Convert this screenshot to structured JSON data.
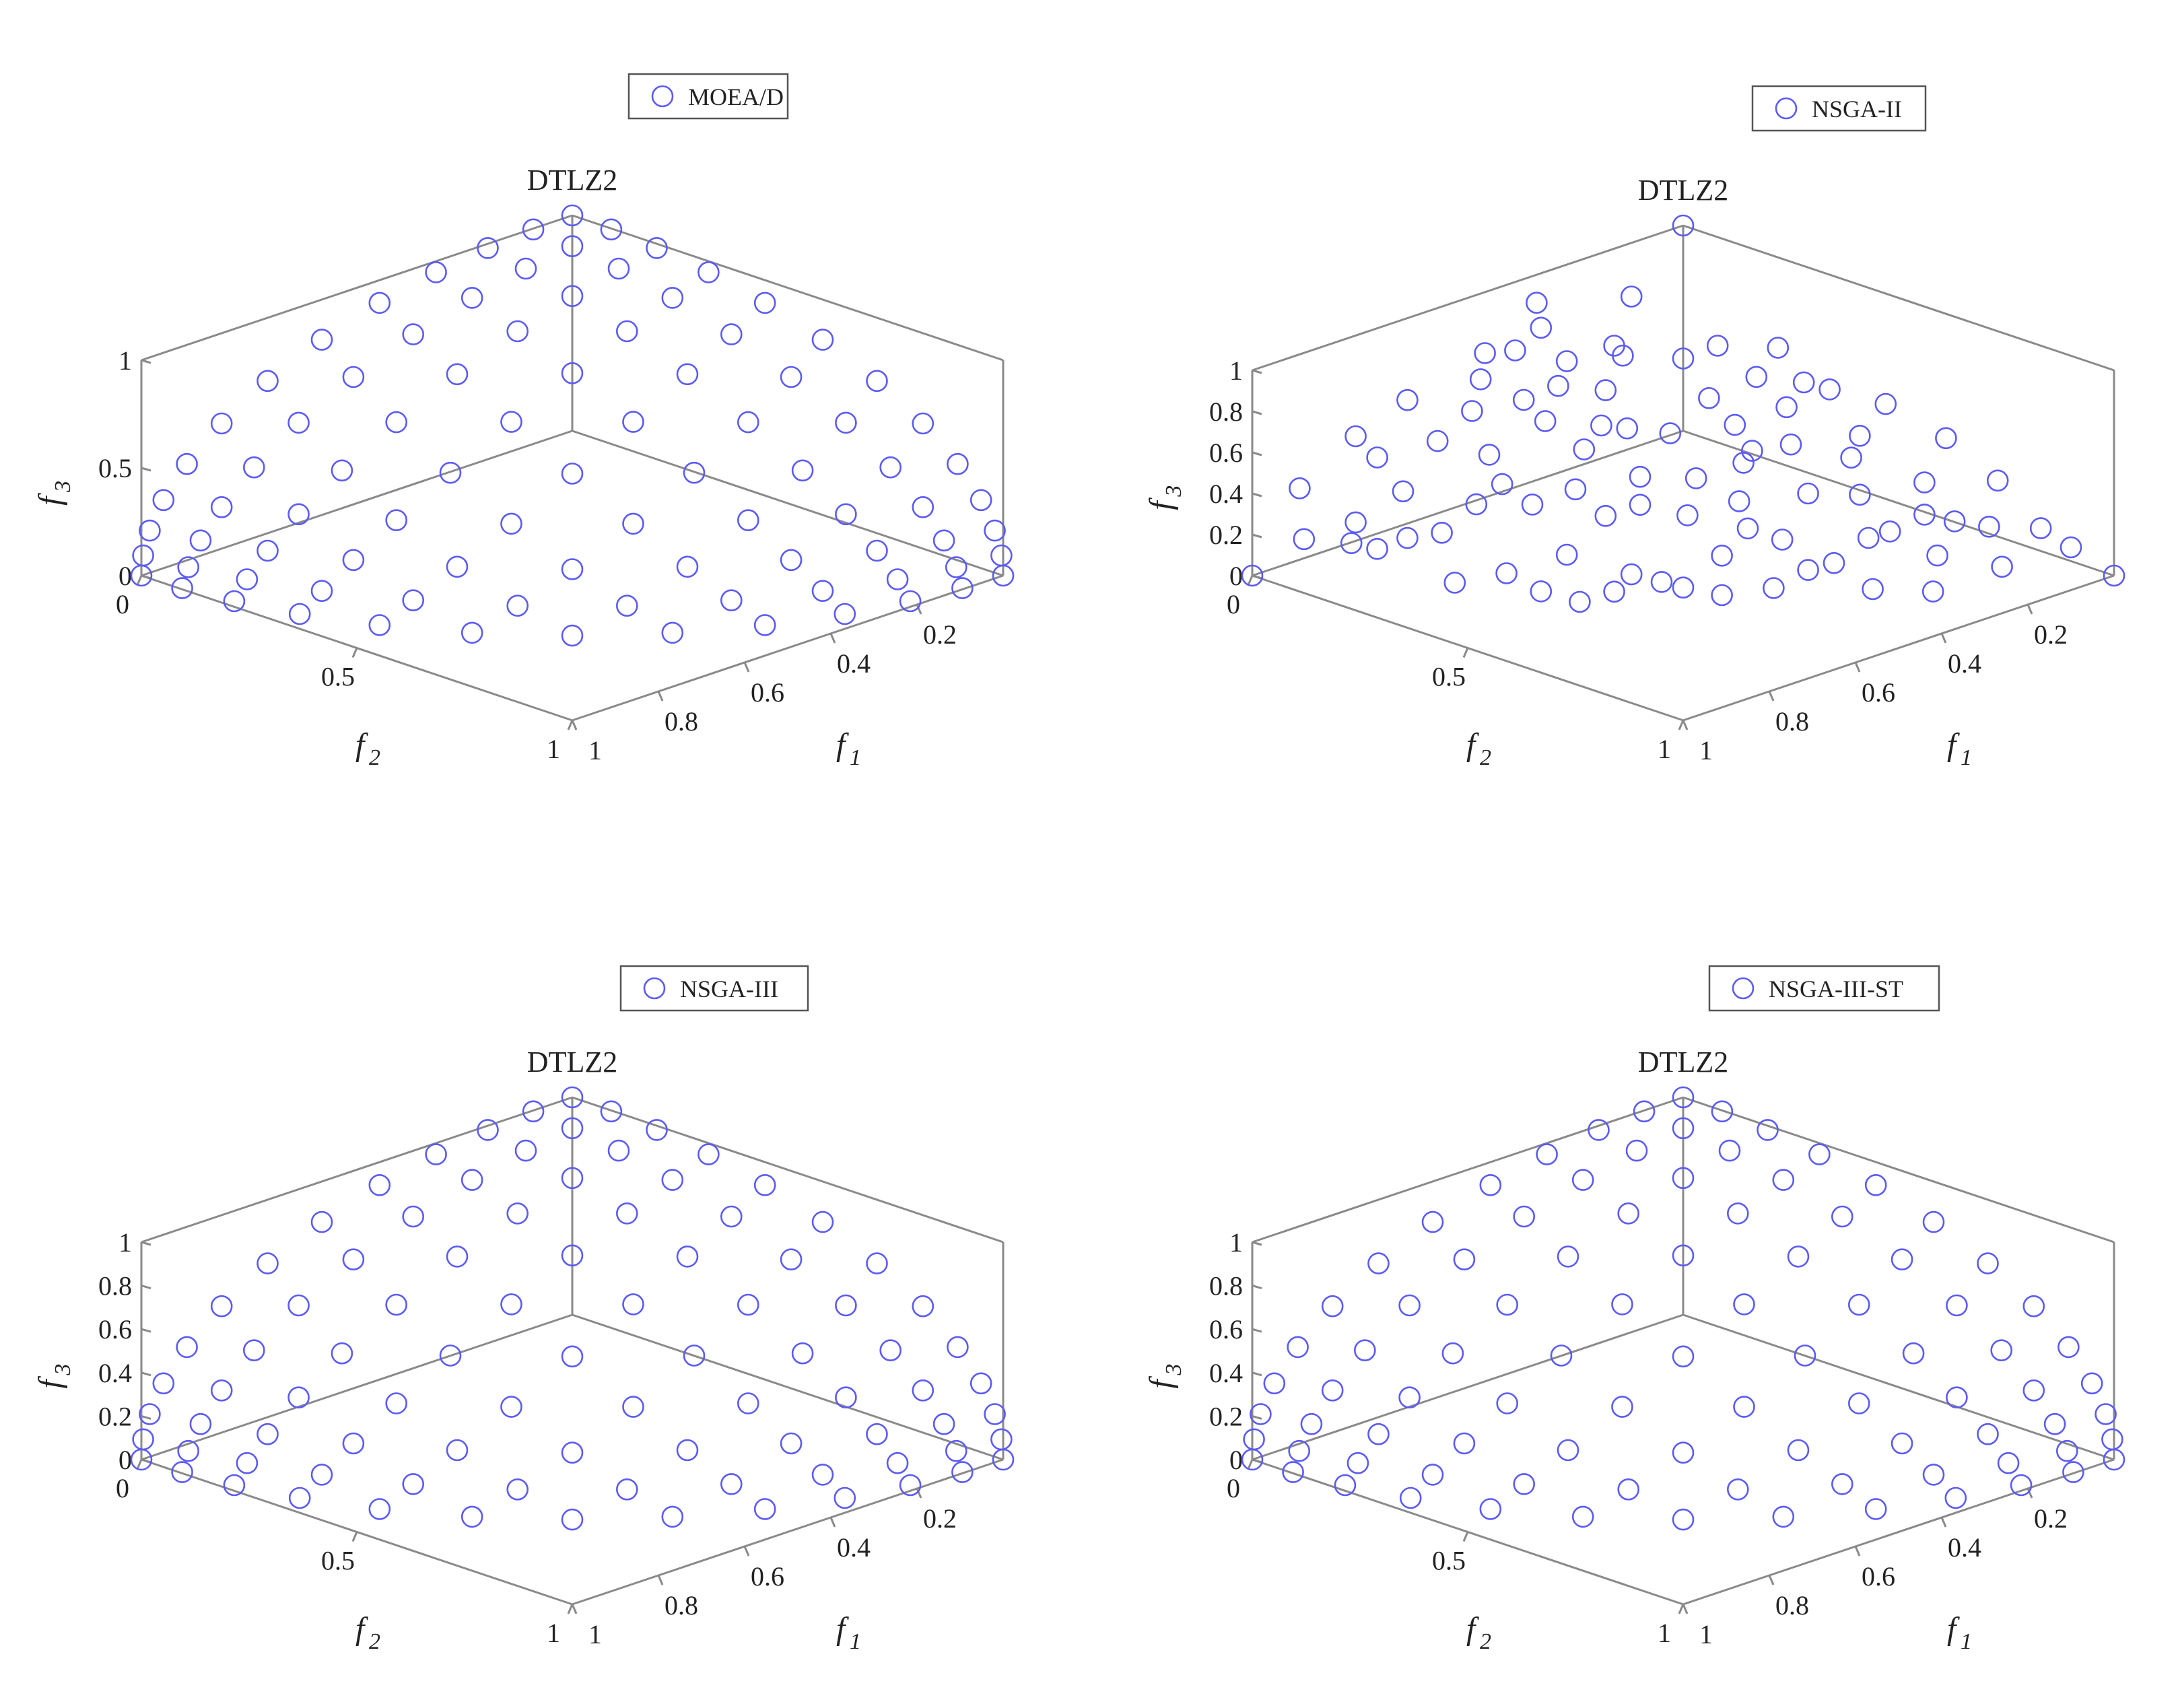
{
  "figure": {
    "marker_color": "#5b5bf5",
    "axis_color": "#8a8a8a",
    "background": "#ffffff"
  },
  "chart_data": [
    {
      "type": "scatter",
      "projection": "3d",
      "title": "DTLZ2",
      "legend": "MOEA/D",
      "legend_position": "top-right",
      "xlabel": "f1",
      "ylabel": "f2",
      "zlabel": "f3",
      "xlim": [
        0,
        1
      ],
      "ylim": [
        0,
        1
      ],
      "zlim": [
        0,
        1
      ],
      "x_ticks": [
        "0.2",
        "0.4",
        "0.6",
        "0.8",
        "1"
      ],
      "y_ticks": [
        "0",
        "0.5",
        "1"
      ],
      "z_ticks": [
        "0",
        "0.5",
        "1"
      ],
      "grid": false,
      "marker": "open-circle",
      "point_set": "reference",
      "points_note": "Uniformly distributed solutions on the spherical DTLZ2 front f1^2+f2^2+f3^2=1"
    },
    {
      "type": "scatter",
      "projection": "3d",
      "title": "DTLZ2",
      "legend": "NSGA-II",
      "legend_position": "top-right",
      "xlabel": "f1",
      "ylabel": "f2",
      "zlabel": "f3",
      "xlim": [
        0,
        1
      ],
      "ylim": [
        0,
        1
      ],
      "zlim": [
        0,
        1
      ],
      "x_ticks": [
        "0.2",
        "0.4",
        "0.6",
        "0.8",
        "1"
      ],
      "y_ticks": [
        "0",
        "0.5",
        "1"
      ],
      "z_ticks": [
        "0",
        "0.2",
        "0.4",
        "0.6",
        "0.8",
        "1"
      ],
      "grid": false,
      "marker": "open-circle",
      "point_set": "scattered",
      "points": [
        [
          0.25,
          0.41,
          0.88
        ],
        [
          0.78,
          0.37,
          0.5
        ],
        [
          0.19,
          0.68,
          0.71
        ],
        [
          0.53,
          0.71,
          0.46
        ],
        [
          0.34,
          0.82,
          0.46
        ],
        [
          0.62,
          0.48,
          0.62
        ],
        [
          0.09,
          0.55,
          0.83
        ],
        [
          0.44,
          0.22,
          0.87
        ],
        [
          0.71,
          0.62,
          0.33
        ],
        [
          0.86,
          0.3,
          0.41
        ],
        [
          0.15,
          0.27,
          0.95
        ],
        [
          0.57,
          0.81,
          0.14
        ],
        [
          0.39,
          0.58,
          0.71
        ],
        [
          0.92,
          0.21,
          0.33
        ],
        [
          0.48,
          0.31,
          0.82
        ],
        [
          0.27,
          0.91,
          0.31
        ],
        [
          0.66,
          0.71,
          0.23
        ],
        [
          0.04,
          0.38,
          0.92
        ],
        [
          0.81,
          0.52,
          0.26
        ],
        [
          0.58,
          0.24,
          0.78
        ],
        [
          0.31,
          0.63,
          0.71
        ],
        [
          0.73,
          0.44,
          0.52
        ],
        [
          0.12,
          0.83,
          0.54
        ],
        [
          0.45,
          0.86,
          0.23
        ],
        [
          0.95,
          0.12,
          0.28
        ],
        [
          0.22,
          0.49,
          0.84
        ],
        [
          0.63,
          0.62,
          0.47
        ],
        [
          0.84,
          0.41,
          0.36
        ],
        [
          0.36,
          0.36,
          0.86
        ],
        [
          0.52,
          0.62,
          0.58
        ],
        [
          0.07,
          0.71,
          0.7
        ],
        [
          0.69,
          0.28,
          0.66
        ],
        [
          0.42,
          0.77,
          0.48
        ],
        [
          0.88,
          0.44,
          0.16
        ],
        [
          0.18,
          0.95,
          0.25
        ],
        [
          0.55,
          0.43,
          0.72
        ],
        [
          0.77,
          0.16,
          0.62
        ],
        [
          0.29,
          0.74,
          0.61
        ],
        [
          0.61,
          0.77,
          0.19
        ],
        [
          0.03,
          0.92,
          0.39
        ],
        [
          0.49,
          0.52,
          0.7
        ],
        [
          0.91,
          0.32,
          0.26
        ],
        [
          0.24,
          0.61,
          0.75
        ],
        [
          0.67,
          0.54,
          0.51
        ],
        [
          0.38,
          0.91,
          0.17
        ],
        [
          0.82,
          0.26,
          0.51
        ],
        [
          0.11,
          0.44,
          0.89
        ],
        [
          0.57,
          0.33,
          0.75
        ],
        [
          0.74,
          0.65,
          0.18
        ],
        [
          0.33,
          0.51,
          0.79
        ],
        [
          0.46,
          0.71,
          0.54
        ],
        [
          0.96,
          0.22,
          0.17
        ],
        [
          0.21,
          0.86,
          0.46
        ],
        [
          0.64,
          0.39,
          0.66
        ],
        [
          0.79,
          0.58,
          0.2
        ],
        [
          0.14,
          0.61,
          0.78
        ],
        [
          0.51,
          0.84,
          0.17
        ],
        [
          0.87,
          0.14,
          0.47
        ],
        [
          0.28,
          0.42,
          0.86
        ],
        [
          0.69,
          0.69,
          0.21
        ],
        [
          0.41,
          0.64,
          0.65
        ],
        [
          0.05,
          0.81,
          0.58
        ],
        [
          0.59,
          0.56,
          0.58
        ],
        [
          0.93,
          0.35,
          0.12
        ],
        [
          0.35,
          0.77,
          0.53
        ],
        [
          0.72,
          0.33,
          0.61
        ],
        [
          0.17,
          0.93,
          0.33
        ],
        [
          0.54,
          0.26,
          0.8
        ],
        [
          0.83,
          0.48,
          0.28
        ],
        [
          0.26,
          0.55,
          0.79
        ],
        [
          0.62,
          0.74,
          0.26
        ],
        [
          0.09,
          0.97,
          0.22
        ],
        [
          0.47,
          0.41,
          0.78
        ],
        [
          0.76,
          0.53,
          0.38
        ],
        [
          0.32,
          0.88,
          0.35
        ],
        [
          0.89,
          0.26,
          0.37
        ],
        [
          0.43,
          0.56,
          0.71
        ],
        [
          0.66,
          0.19,
          0.73
        ],
        [
          0.19,
          0.76,
          0.62
        ],
        [
          0.56,
          0.66,
          0.5
        ],
        [
          0.98,
          0.08,
          0.18
        ],
        [
          0.37,
          0.29,
          0.88
        ],
        [
          0.71,
          0.56,
          0.42
        ],
        [
          0.13,
          0.52,
          0.85
        ],
        [
          0.52,
          0.79,
          0.32
        ],
        [
          0.85,
          0.37,
          0.37
        ],
        [
          0.23,
          0.94,
          0.25
        ],
        [
          0.61,
          0.45,
          0.65
        ],
        [
          0.0,
          0.0,
          1.0
        ],
        [
          1.0,
          0.0,
          0.0
        ],
        [
          0.0,
          1.0,
          0.0
        ]
      ]
    },
    {
      "type": "scatter",
      "projection": "3d",
      "title": "DTLZ2",
      "legend": "NSGA-III",
      "legend_position": "top-right",
      "xlabel": "f1",
      "ylabel": "f2",
      "zlabel": "f3",
      "xlim": [
        0,
        1
      ],
      "ylim": [
        0,
        1
      ],
      "zlim": [
        0,
        1
      ],
      "x_ticks": [
        "0.2",
        "0.4",
        "0.6",
        "0.8",
        "1"
      ],
      "y_ticks": [
        "0",
        "0.5",
        "1"
      ],
      "z_ticks": [
        "0",
        "0.2",
        "0.4",
        "0.6",
        "0.8",
        "1"
      ],
      "grid": false,
      "marker": "open-circle",
      "point_set": "reference",
      "points_note": "Uniformly distributed solutions on the spherical DTLZ2 front f1^2+f2^2+f3^2=1"
    },
    {
      "type": "scatter",
      "projection": "3d",
      "title": "DTLZ2",
      "legend": "NSGA-III-ST",
      "legend_position": "top-right",
      "xlabel": "f1",
      "ylabel": "f2",
      "zlabel": "f3",
      "xlim": [
        0,
        1
      ],
      "ylim": [
        0,
        1
      ],
      "zlim": [
        0,
        1
      ],
      "x_ticks": [
        "0.2",
        "0.4",
        "0.6",
        "0.8",
        "1"
      ],
      "y_ticks": [
        "0",
        "0.5",
        "1"
      ],
      "z_ticks": [
        "0",
        "0.2",
        "0.4",
        "0.6",
        "0.8",
        "1"
      ],
      "grid": false,
      "marker": "open-circle",
      "point_set": "reference",
      "points_note": "Uniformly distributed solutions on the spherical DTLZ2 front f1^2+f2^2+f3^2=1"
    }
  ]
}
